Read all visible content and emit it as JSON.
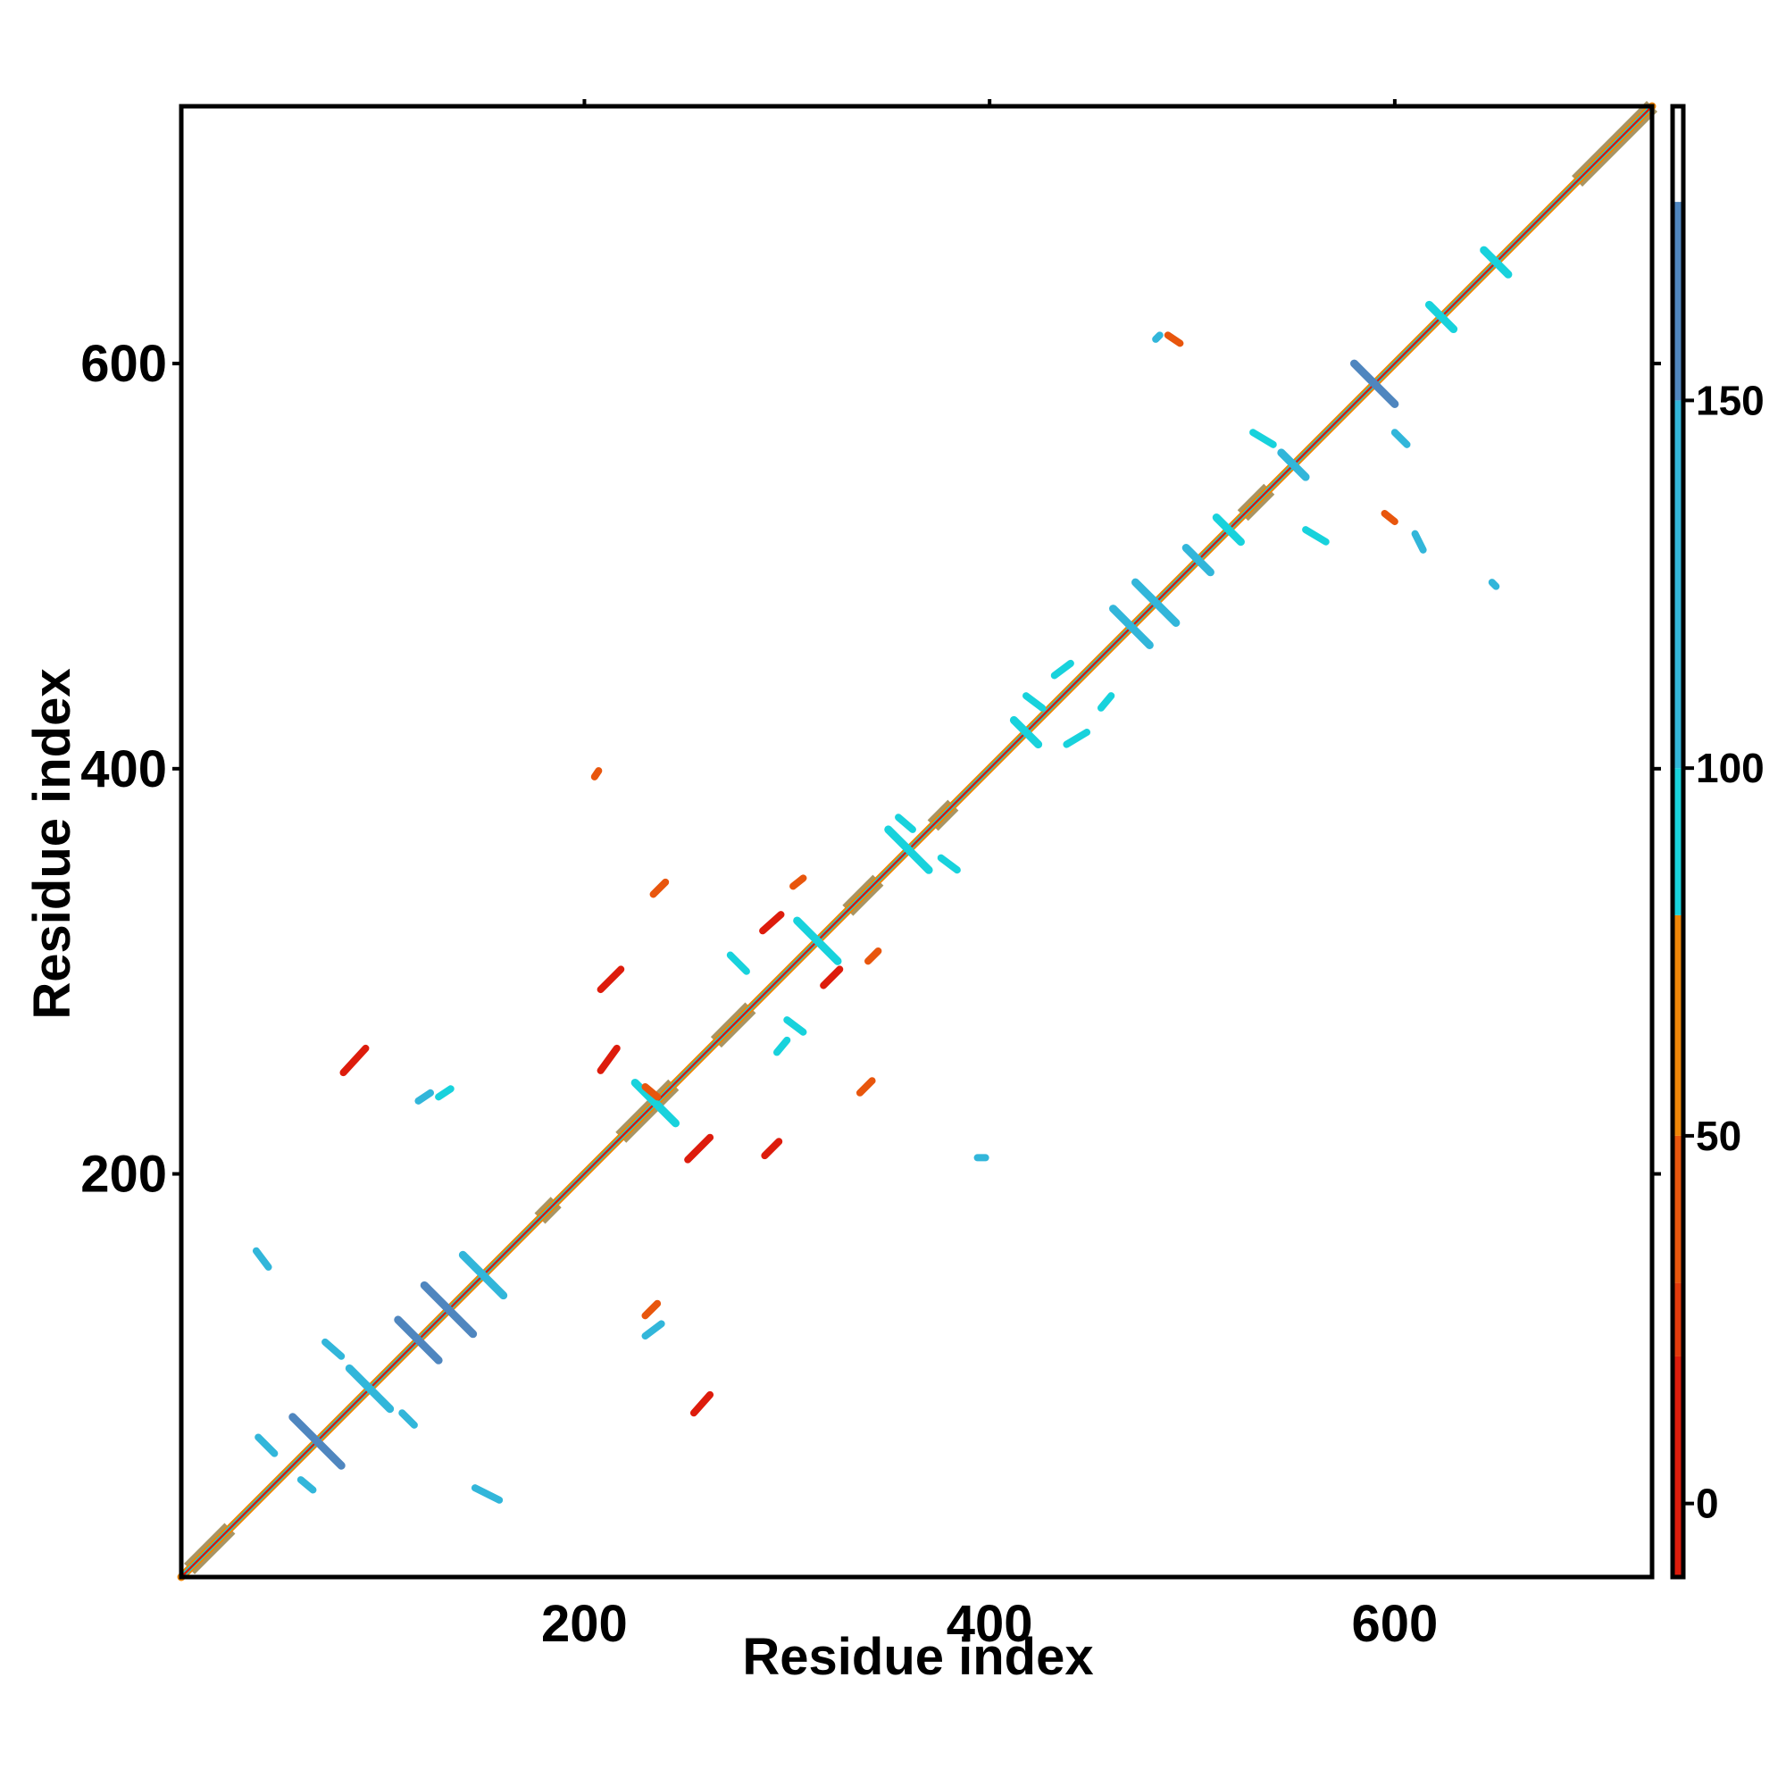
{
  "chart_data": {
    "type": "heatmap",
    "subtype": "residue contact map",
    "xlabel": "Residue index",
    "ylabel": "Residue index",
    "xlim": [
      1,
      727
    ],
    "ylim": [
      1,
      727
    ],
    "xticks": [
      200,
      400,
      600
    ],
    "yticks": [
      200,
      400,
      600
    ],
    "colorbar": {
      "range": [
        -10,
        190
      ],
      "ticks": [
        0,
        50,
        100,
        150
      ],
      "bands": [
        {
          "from": -10,
          "to": 20,
          "color": "#dd1c0c"
        },
        {
          "from": 20,
          "to": 30,
          "color": "#e23a0c"
        },
        {
          "from": 30,
          "to": 50,
          "color": "#e8560d"
        },
        {
          "from": 50,
          "to": 80,
          "color": "#ee8608"
        },
        {
          "from": 80,
          "to": 100,
          "color": "#18d2dc"
        },
        {
          "from": 100,
          "to": 150,
          "color": "#32b6da"
        },
        {
          "from": 150,
          "to": 177,
          "color": "#4f86bf"
        },
        {
          "from": 177,
          "to": 190,
          "color": "#ffffff"
        }
      ]
    },
    "diagonal": {
      "from": 1,
      "to": 727
    },
    "dense_diagonal_blocks": [
      [
        5,
        25
      ],
      [
        178,
        186
      ],
      [
        218,
        244
      ],
      [
        265,
        282
      ],
      [
        330,
        345
      ],
      [
        372,
        382
      ],
      [
        525,
        538
      ],
      [
        690,
        727
      ]
    ],
    "helix_crosses": [
      {
        "center": [
          68,
          68
        ],
        "half": 12,
        "color": "#4f86bf"
      },
      {
        "center": [
          94,
          94
        ],
        "half": 10,
        "color": "#32b6da"
      },
      {
        "center": [
          118,
          118
        ],
        "half": 10,
        "color": "#4f86bf"
      },
      {
        "center": [
          133,
          133
        ],
        "half": 12,
        "color": "#4f86bf"
      },
      {
        "center": [
          150,
          150
        ],
        "half": 10,
        "color": "#32b6da"
      },
      {
        "center": [
          235,
          235
        ],
        "half": 10,
        "color": "#18d2dc"
      },
      {
        "center": [
          315,
          315
        ],
        "half": 10,
        "color": "#18d2dc"
      },
      {
        "center": [
          360,
          360
        ],
        "half": 10,
        "color": "#18d2dc"
      },
      {
        "center": [
          418,
          418
        ],
        "half": 6,
        "color": "#18d2dc"
      },
      {
        "center": [
          470,
          470
        ],
        "half": 9,
        "color": "#32b6da"
      },
      {
        "center": [
          482,
          482
        ],
        "half": 10,
        "color": "#32b6da"
      },
      {
        "center": [
          503,
          503
        ],
        "half": 6,
        "color": "#32b6da"
      },
      {
        "center": [
          518,
          518
        ],
        "half": 6,
        "color": "#18d2dc"
      },
      {
        "center": [
          550,
          550
        ],
        "half": 6,
        "color": "#32b6da"
      },
      {
        "center": [
          590,
          590
        ],
        "half": 10,
        "color": "#4f86bf"
      },
      {
        "center": [
          623,
          623
        ],
        "half": 6,
        "color": "#18d2dc"
      },
      {
        "center": [
          650,
          650
        ],
        "half": 6,
        "color": "#18d2dc"
      }
    ],
    "off_diagonal_streaks": [
      {
        "from": [
          81,
          250
        ],
        "to": [
          92,
          262
        ],
        "color": "#dd1c0c"
      },
      {
        "from": [
          208,
          251
        ],
        "to": [
          216,
          262
        ],
        "color": "#dd1c0c"
      },
      {
        "from": [
          208,
          291
        ],
        "to": [
          218,
          301
        ],
        "color": "#dd1c0c"
      },
      {
        "from": [
          251,
          207
        ],
        "to": [
          262,
          218
        ],
        "color": "#dd1c0c"
      },
      {
        "from": [
          289,
          209
        ],
        "to": [
          296,
          216
        ],
        "color": "#dd1c0c"
      },
      {
        "from": [
          288,
          320
        ],
        "to": [
          297,
          328
        ],
        "color": "#dd1c0c"
      },
      {
        "from": [
          318,
          293
        ],
        "to": [
          326,
          301
        ],
        "color": "#dd1c0c"
      },
      {
        "from": [
          254,
          82
        ],
        "to": [
          262,
          91
        ],
        "color": "#dd1c0c"
      },
      {
        "from": [
          205,
          396
        ],
        "to": [
          207,
          399
        ],
        "color": "#e8560d"
      },
      {
        "from": [
          38,
          162
        ],
        "to": [
          44,
          154
        ],
        "color": "#32b6da"
      },
      {
        "from": [
          146,
          45
        ],
        "to": [
          158,
          39
        ],
        "color": "#32b6da"
      },
      {
        "from": [
          394,
          208
        ],
        "to": [
          398,
          208
        ],
        "color": "#32b6da"
      },
      {
        "from": [
          39,
          70
        ],
        "to": [
          47,
          62
        ],
        "color": "#32b6da"
      },
      {
        "from": [
          60,
          49
        ],
        "to": [
          66,
          44
        ],
        "color": "#32b6da"
      },
      {
        "from": [
          72,
          117
        ],
        "to": [
          80,
          110
        ],
        "color": "#32b6da"
      },
      {
        "from": [
          110,
          82
        ],
        "to": [
          116,
          76
        ],
        "color": "#32b6da"
      },
      {
        "from": [
          482,
          612
        ],
        "to": [
          484,
          614
        ],
        "color": "#32b6da"
      },
      {
        "from": [
          610,
          516
        ],
        "to": [
          614,
          508
        ],
        "color": "#32b6da"
      },
      {
        "from": [
          648,
          492
        ],
        "to": [
          650,
          490
        ],
        "color": "#32b6da"
      },
      {
        "from": [
          488,
          614
        ],
        "to": [
          494,
          610
        ],
        "color": "#e8560d"
      },
      {
        "from": [
          600,
          566
        ],
        "to": [
          606,
          560
        ],
        "color": "#32b6da"
      },
      {
        "from": [
          595,
          526
        ],
        "to": [
          600,
          522
        ],
        "color": "#e8560d"
      },
      {
        "from": [
          556,
          518
        ],
        "to": [
          566,
          512
        ],
        "color": "#18d2dc"
      },
      {
        "from": [
          530,
          566
        ],
        "to": [
          540,
          560
        ],
        "color": "#18d2dc"
      },
      {
        "from": [
          438,
          412
        ],
        "to": [
          448,
          418
        ],
        "color": "#18d2dc"
      },
      {
        "from": [
          455,
          430
        ],
        "to": [
          460,
          436
        ],
        "color": "#18d2dc"
      },
      {
        "from": [
          432,
          446
        ],
        "to": [
          440,
          452
        ],
        "color": "#18d2dc"
      },
      {
        "from": [
          418,
          436
        ],
        "to": [
          426,
          430
        ],
        "color": "#18d2dc"
      },
      {
        "from": [
          376,
          356
        ],
        "to": [
          384,
          350
        ],
        "color": "#18d2dc"
      },
      {
        "from": [
          355,
          376
        ],
        "to": [
          362,
          370
        ],
        "color": "#18d2dc"
      },
      {
        "from": [
          272,
          308
        ],
        "to": [
          280,
          300
        ],
        "color": "#18d2dc"
      },
      {
        "from": [
          300,
          276
        ],
        "to": [
          308,
          270
        ],
        "color": "#18d2dc"
      },
      {
        "from": [
          230,
          243
        ],
        "to": [
          236,
          238
        ],
        "color": "#e8560d"
      },
      {
        "from": [
          336,
          240
        ],
        "to": [
          342,
          246
        ],
        "color": "#e8560d"
      },
      {
        "from": [
          234,
          338
        ],
        "to": [
          240,
          344
        ],
        "color": "#e8560d"
      },
      {
        "from": [
          303,
          342
        ],
        "to": [
          308,
          346
        ],
        "color": "#e8560d"
      },
      {
        "from": [
          340,
          305
        ],
        "to": [
          345,
          310
        ],
        "color": "#e8560d"
      },
      {
        "from": [
          118,
          236
        ],
        "to": [
          124,
          240
        ],
        "color": "#32b6da"
      },
      {
        "from": [
          128,
          238
        ],
        "to": [
          134,
          242
        ],
        "color": "#18d2dc"
      },
      {
        "from": [
          230,
          120
        ],
        "to": [
          238,
          126
        ],
        "color": "#32b6da"
      },
      {
        "from": [
          230,
          130
        ],
        "to": [
          236,
          136
        ],
        "color": "#e8560d"
      },
      {
        "from": [
          295,
          260
        ],
        "to": [
          300,
          266
        ],
        "color": "#18d2dc"
      }
    ]
  }
}
